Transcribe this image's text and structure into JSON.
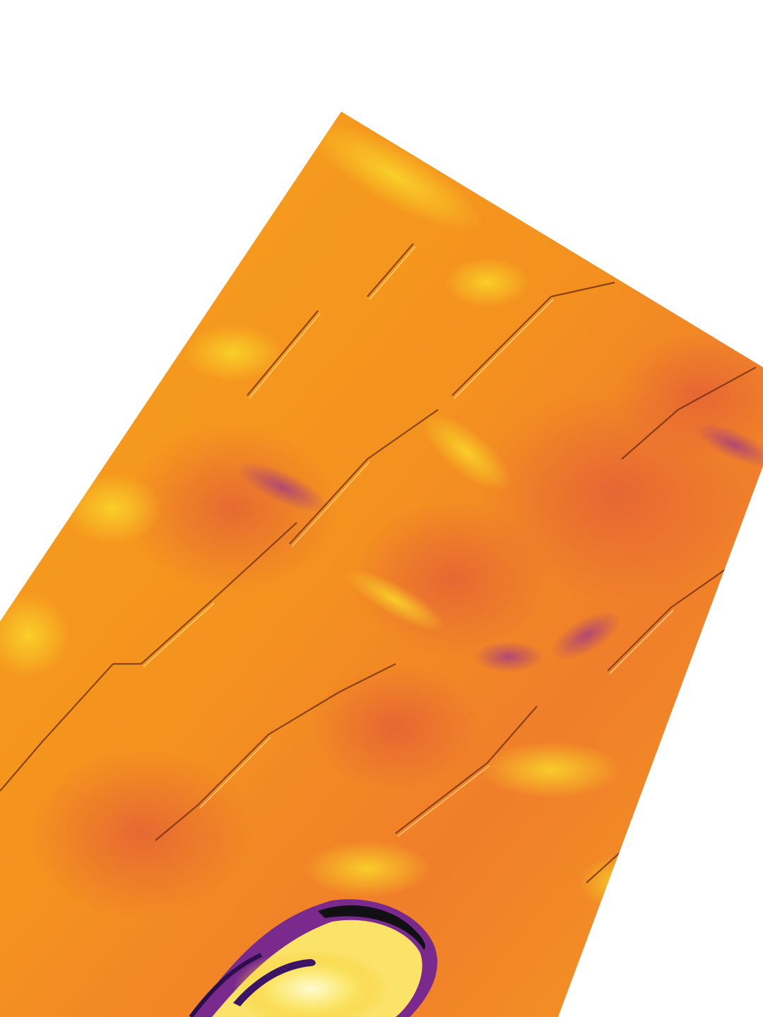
{
  "image": {
    "kind": "thermal-image",
    "subject": "roof-tiles",
    "palette": [
      "#ffffff",
      "#f7d21a",
      "#f79a1c",
      "#f07b2c",
      "#d8503a",
      "#9a2f7a",
      "#4b1a7e",
      "#0d0d12"
    ]
  }
}
